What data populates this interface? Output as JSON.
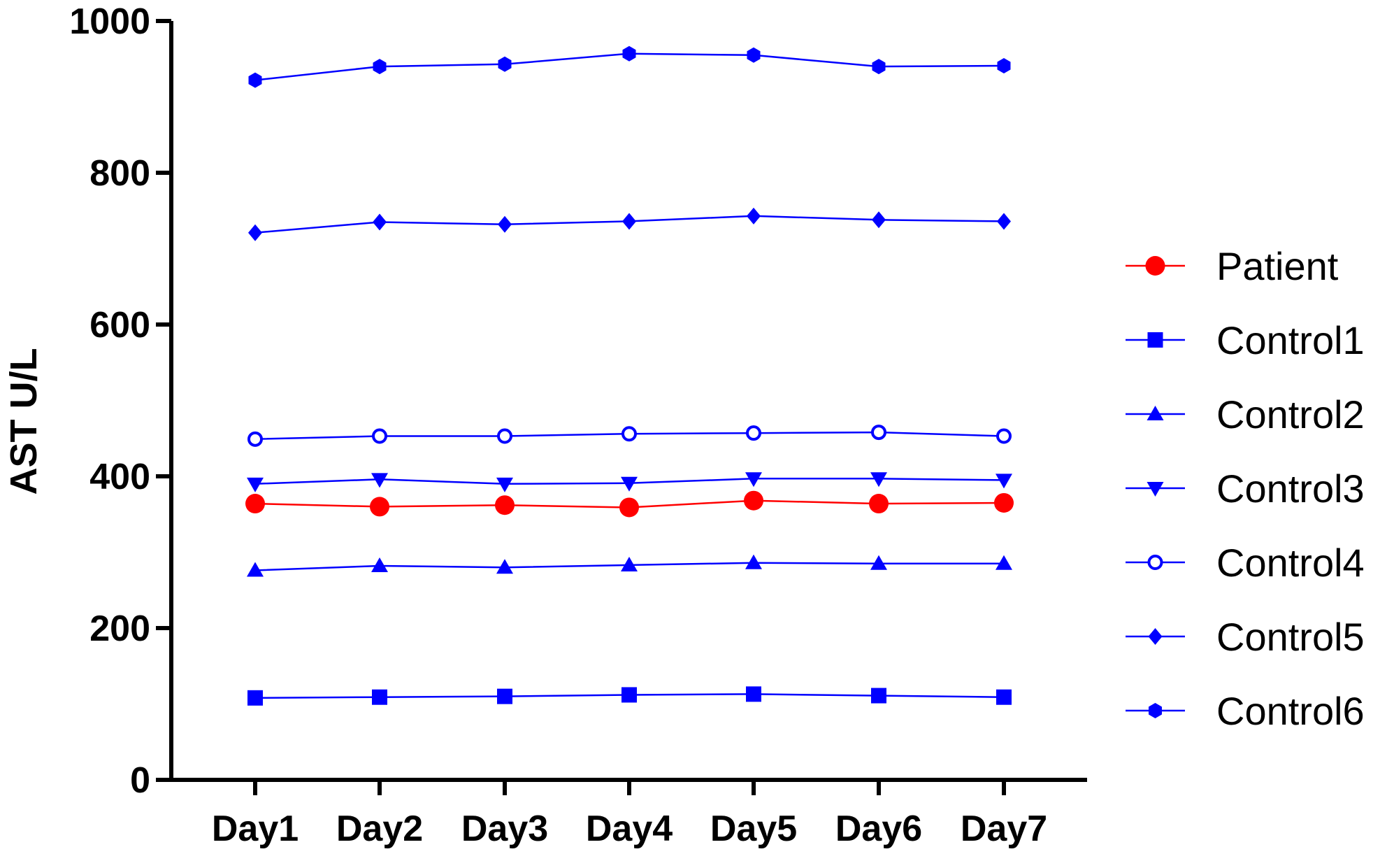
{
  "chart_data": {
    "type": "line",
    "categories": [
      "Day1",
      "Day2",
      "Day3",
      "Day4",
      "Day5",
      "Day6",
      "Day7"
    ],
    "ylabel": "AST U/L",
    "xlabel": "",
    "title": "",
    "ylim": [
      0,
      1000
    ],
    "yticks": [
      "0",
      "200",
      "400",
      "600",
      "800",
      "1000"
    ],
    "grid": false,
    "legend_position": "right",
    "series": [
      {
        "name": "Patient",
        "color": "#ff0000",
        "marker": "circle-large",
        "values": [
          364,
          360,
          362,
          359,
          368,
          364,
          365
        ]
      },
      {
        "name": "Control1",
        "color": "#0000ff",
        "marker": "square",
        "values": [
          108,
          109,
          110,
          112,
          113,
          111,
          109
        ]
      },
      {
        "name": "Control2",
        "color": "#0000ff",
        "marker": "triangle-up",
        "values": [
          276,
          282,
          280,
          283,
          286,
          285,
          285
        ]
      },
      {
        "name": "Control3",
        "color": "#0000ff",
        "marker": "triangle-down",
        "values": [
          390,
          396,
          390,
          391,
          397,
          397,
          395
        ]
      },
      {
        "name": "Control4",
        "color": "#0000ff",
        "marker": "circle-open",
        "values": [
          449,
          453,
          453,
          456,
          457,
          458,
          453
        ]
      },
      {
        "name": "Control5",
        "color": "#0000ff",
        "marker": "diamond",
        "values": [
          721,
          735,
          732,
          736,
          743,
          738,
          736
        ]
      },
      {
        "name": "Control6",
        "color": "#0000ff",
        "marker": "hexagon",
        "values": [
          922,
          940,
          943,
          957,
          955,
          940,
          941
        ]
      }
    ]
  }
}
